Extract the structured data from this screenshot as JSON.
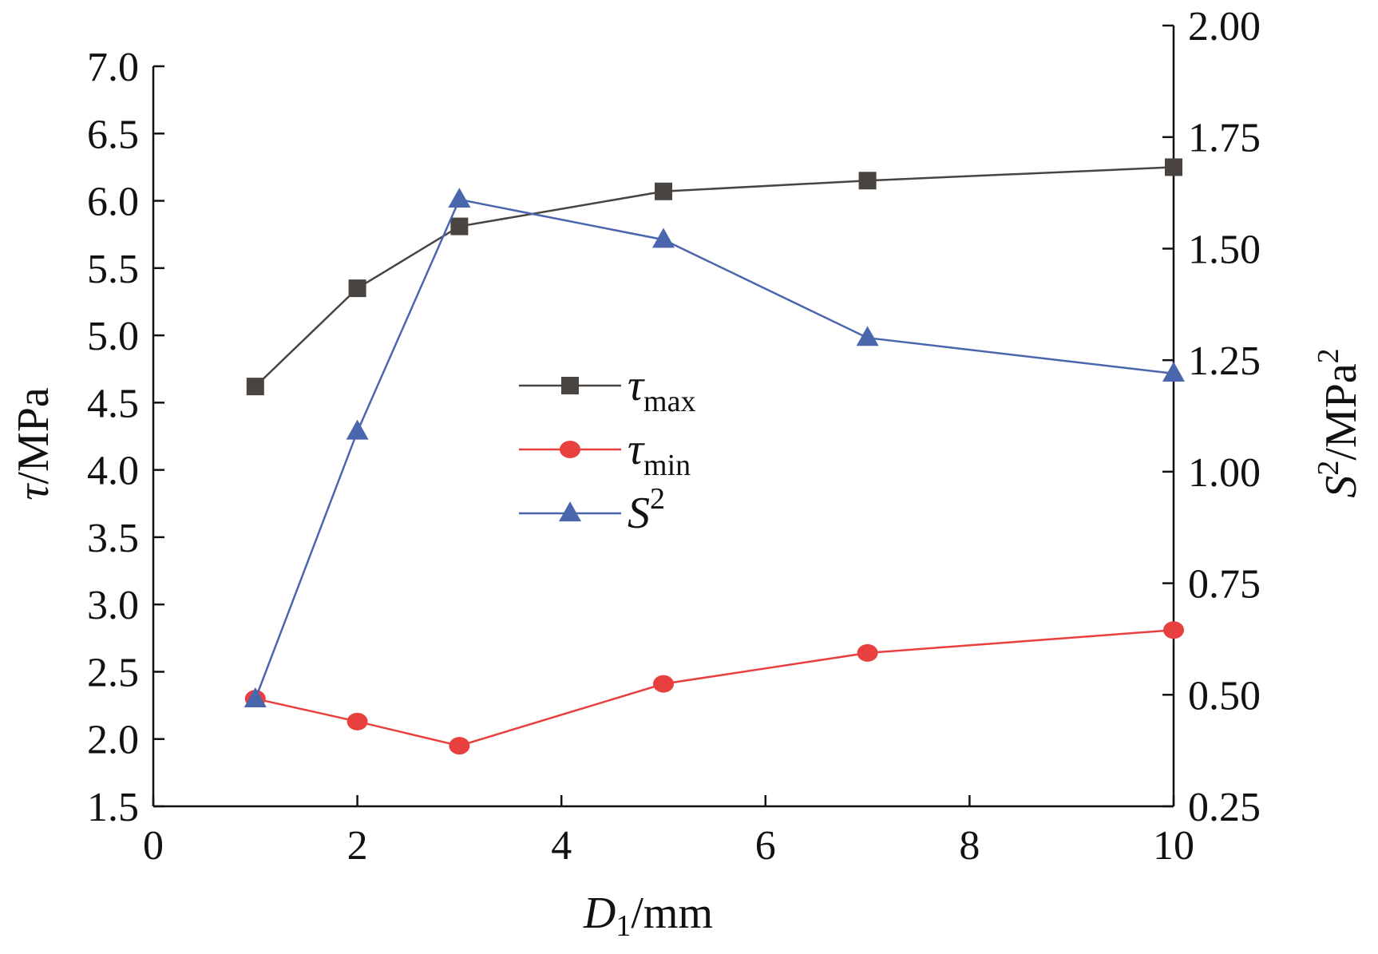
{
  "chart_data": {
    "type": "line",
    "x_axis": {
      "label_symbol": "D",
      "label_subscript": "1",
      "label_unit": "/mm",
      "range": [
        0,
        10
      ],
      "ticks": [
        0,
        2,
        4,
        6,
        8,
        10
      ]
    },
    "y_left": {
      "label_symbol": "τ",
      "label_unit": "/MPa",
      "range": [
        1.5,
        7.0
      ],
      "ticks": [
        "1.5",
        "2.0",
        "2.5",
        "3.0",
        "3.5",
        "4.0",
        "4.5",
        "5.0",
        "5.5",
        "6.0",
        "6.5",
        "7.0"
      ]
    },
    "y_right": {
      "label_symbol": "S",
      "label_superscript": "2",
      "label_unit": "/MPa",
      "label_unit_superscript": "2",
      "range": [
        0.25,
        2.0
      ],
      "ticks": [
        "0.25",
        "0.50",
        "0.75",
        "1.00",
        "1.25",
        "1.50",
        "1.75",
        "2.00"
      ]
    },
    "series": [
      {
        "key": "tau_max",
        "name_symbol": "τ",
        "name_subscript": "max",
        "axis": "left",
        "marker": "square",
        "color": "#4a4440",
        "x": [
          1,
          2,
          3,
          5,
          7,
          10
        ],
        "y": [
          4.62,
          5.35,
          5.81,
          6.07,
          6.15,
          6.25
        ]
      },
      {
        "key": "tau_min",
        "name_symbol": "τ",
        "name_subscript": "min",
        "axis": "left",
        "marker": "circle",
        "color": "#e8403f",
        "x": [
          1,
          2,
          3,
          5,
          7,
          10
        ],
        "y": [
          2.3,
          2.13,
          1.95,
          2.41,
          2.64,
          2.81
        ]
      },
      {
        "key": "s2",
        "name_symbol": "S",
        "name_superscript": "2",
        "axis": "right",
        "marker": "triangle",
        "color": "#4a67ad",
        "x": [
          1,
          2,
          3,
          5,
          7,
          10
        ],
        "y": [
          0.49,
          1.09,
          1.61,
          1.52,
          1.3,
          1.22
        ]
      }
    ],
    "legend_position": "center",
    "grid": false
  }
}
